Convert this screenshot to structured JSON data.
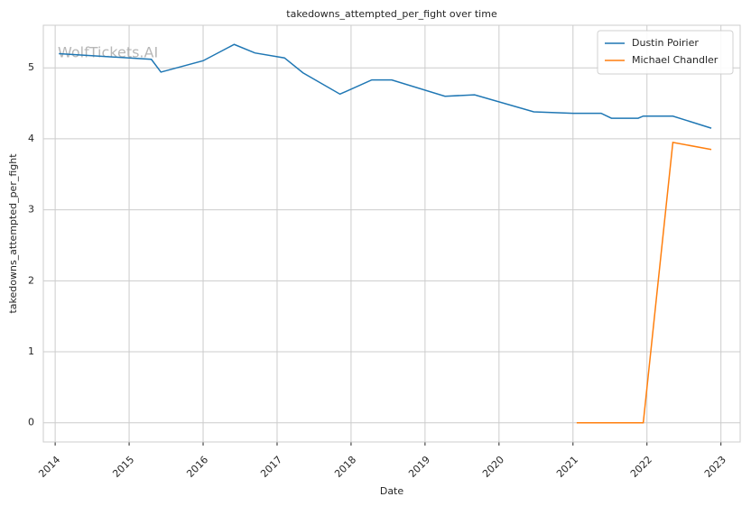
{
  "chart_data": {
    "type": "line",
    "title": "takedowns_attempted_per_fight over time",
    "x_label": "Date",
    "y_label": "takedowns_attempted_per_fight",
    "watermark": "WolfTickets.AI",
    "xlim": [
      2013.84,
      2023.26
    ],
    "xticks": [
      2014,
      2015,
      2016,
      2017,
      2018,
      2019,
      2020,
      2021,
      2022,
      2023
    ],
    "ylim": [
      -0.27,
      5.6
    ],
    "yticks": [
      0,
      1,
      2,
      3,
      4,
      5
    ],
    "grid": true,
    "legend": "upper right",
    "series": [
      {
        "name": "Dustin Poirier",
        "color": "#1f77b4",
        "x": [
          2014.05,
          2015.3,
          2015.43,
          2016.0,
          2016.42,
          2016.7,
          2017.1,
          2017.35,
          2017.85,
          2018.28,
          2018.55,
          2019.27,
          2019.67,
          2020.47,
          2021.0,
          2021.38,
          2021.52,
          2021.88,
          2021.95,
          2022.35,
          2022.87
        ],
        "values": [
          5.2,
          5.12,
          4.94,
          5.1,
          5.33,
          5.21,
          5.14,
          4.93,
          4.63,
          4.83,
          4.83,
          4.6,
          4.62,
          4.38,
          4.36,
          4.36,
          4.29,
          4.29,
          4.32,
          4.32,
          4.15
        ]
      },
      {
        "name": "Michael Chandler",
        "color": "#ff7f0e",
        "x": [
          2021.05,
          2021.95,
          2022.35,
          2022.87
        ],
        "values": [
          0,
          0,
          3.95,
          3.85
        ]
      }
    ]
  }
}
